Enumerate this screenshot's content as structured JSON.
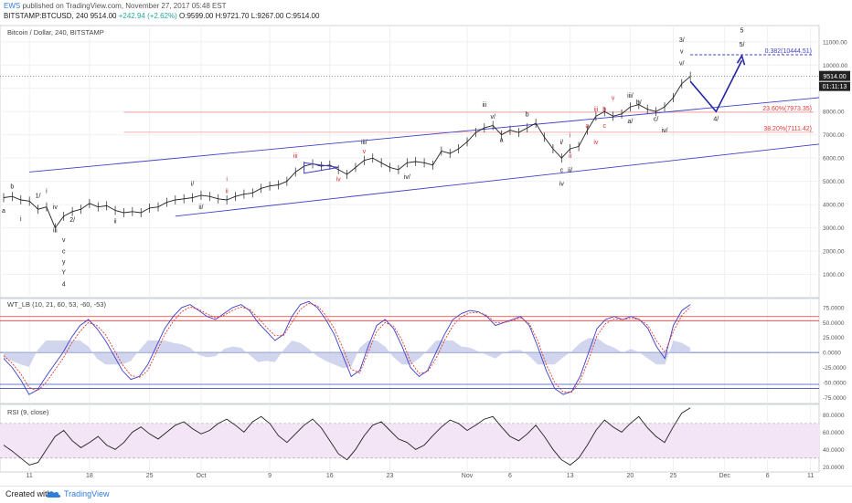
{
  "header": {
    "user": "EWS",
    "published": "published on TradingView.com, November 27, 2017 05:48 EST",
    "symbol": "BITSTAMP:BTCUSD, 240",
    "last": "9514.00",
    "change": "+242.94 (+2.62%)",
    "ohlc": "O:9599.00 H:9721.70 L:9267.00 C:9514.00"
  },
  "footer": {
    "created": "Created with",
    "brand": "TradingView"
  },
  "colors": {
    "grid": "#eef0f3",
    "wave_black": "#222222",
    "wave_red": "#d32f2f",
    "channel": "#3f3fc8",
    "projection": "#2424a8",
    "fib": "#ef9a9a",
    "rsi_band": "#f3e5f5",
    "wt_fill": "#c5cae9"
  },
  "chart_data": [
    {
      "type": "line",
      "title": "Bitcoin / Dollar, 240, BITSTAMP",
      "y_ticks": [
        "11000.00",
        "10000.00",
        "9000.00",
        "8000.00",
        "7000.00",
        "6000.00",
        "5000.00",
        "4000.00",
        "3000.00",
        "2000.00",
        "1000.00"
      ],
      "ylim": [
        0,
        11700
      ],
      "x_tick_labels": [
        "11",
        "18",
        "25",
        "Oct",
        "9",
        "16",
        "23",
        "Nov",
        "6",
        "13",
        "20",
        "25",
        "Dec",
        "6",
        "11"
      ],
      "price_label": "9514.00",
      "countdown": "01:11:13",
      "fib_levels": [
        {
          "label": "0.382(10444.51)",
          "value": 10444.51
        },
        {
          "label": "23.60%(7973.35)",
          "value": 7973.35
        },
        {
          "label": "38.20%(7111.42)",
          "value": 7111.42
        }
      ],
      "series": [
        {
          "name": "BTCUSD",
          "x": [
            "Sep 8",
            "Sep 9",
            "Sep 10",
            "Sep 11",
            "Sep 12",
            "Sep 13",
            "Sep 14",
            "Sep 15",
            "Sep 16",
            "Sep 17",
            "Sep 18",
            "Sep 19",
            "Sep 20",
            "Sep 21",
            "Sep 22",
            "Sep 23",
            "Sep 24",
            "Sep 25",
            "Sep 26",
            "Sep 27",
            "Sep 28",
            "Sep 29",
            "Sep 30",
            "Oct 1",
            "Oct 2",
            "Oct 3",
            "Oct 4",
            "Oct 5",
            "Oct 6",
            "Oct 7",
            "Oct 8",
            "Oct 9",
            "Oct 10",
            "Oct 11",
            "Oct 12",
            "Oct 13",
            "Oct 14",
            "Oct 15",
            "Oct 16",
            "Oct 17",
            "Oct 18",
            "Oct 19",
            "Oct 20",
            "Oct 21",
            "Oct 22",
            "Oct 23",
            "Oct 24",
            "Oct 25",
            "Oct 26",
            "Oct 27",
            "Oct 28",
            "Oct 29",
            "Oct 30",
            "Oct 31",
            "Nov 1",
            "Nov 2",
            "Nov 3",
            "Nov 4",
            "Nov 5",
            "Nov 6",
            "Nov 7",
            "Nov 8",
            "Nov 9",
            "Nov 10",
            "Nov 11",
            "Nov 12",
            "Nov 13",
            "Nov 14",
            "Nov 15",
            "Nov 16",
            "Nov 17",
            "Nov 18",
            "Nov 19",
            "Nov 20",
            "Nov 21",
            "Nov 22",
            "Nov 23",
            "Nov 24",
            "Nov 25",
            "Nov 26",
            "Nov 27"
          ],
          "values": [
            4300,
            4350,
            4200,
            4150,
            3800,
            3900,
            3000,
            3500,
            3700,
            3800,
            4050,
            3900,
            3950,
            3750,
            3650,
            3700,
            3650,
            3850,
            3900,
            4100,
            4200,
            4250,
            4300,
            4400,
            4350,
            4250,
            4200,
            4350,
            4450,
            4500,
            4700,
            4800,
            4850,
            5000,
            5400,
            5650,
            5750,
            5650,
            5700,
            5500,
            5300,
            5600,
            5900,
            6000,
            5800,
            5600,
            5500,
            5800,
            5850,
            5800,
            5700,
            6300,
            6200,
            6400,
            6700,
            7100,
            7300,
            7400,
            7000,
            7200,
            7100,
            7300,
            7500,
            6900,
            6400,
            6000,
            6400,
            6500,
            7200,
            7800,
            8000,
            7800,
            7900,
            8200,
            8300,
            8100,
            8000,
            8200,
            8600,
            9200,
            9514
          ]
        }
      ],
      "projection_path": [
        {
          "x": "Nov 27",
          "y": 9300
        },
        {
          "x": "Nov 30",
          "y": 8000
        },
        {
          "x": "Dec 3",
          "y": 10200
        }
      ],
      "labels_black": [
        {
          "text": "b",
          "x": "Sep 9",
          "y": 4700
        },
        {
          "text": "a",
          "x": "Sep 8",
          "y": 3650
        },
        {
          "text": "i",
          "x": "Sep 10",
          "y": 3300
        },
        {
          "text": "1/",
          "x": "Sep 12",
          "y": 4300
        },
        {
          "text": "i",
          "x": "Sep 13",
          "y": 4500
        },
        {
          "text": "iii",
          "x": "Sep 14",
          "y": 2800
        },
        {
          "text": "iv",
          "x": "Sep 14",
          "y": 3800
        },
        {
          "text": "2/",
          "x": "Sep 16",
          "y": 3250
        },
        {
          "text": "v",
          "x": "Sep 15",
          "y": 2400
        },
        {
          "text": "c",
          "x": "Sep 15",
          "y": 1900
        },
        {
          "text": "y",
          "x": "Sep 15",
          "y": 1450
        },
        {
          "text": "Y",
          "x": "Sep 15",
          "y": 1000
        },
        {
          "text": "4",
          "x": "Sep 15",
          "y": 500
        },
        {
          "text": "ii",
          "x": "Sep 21",
          "y": 3200
        },
        {
          "text": "i/",
          "x": "Sep 30",
          "y": 4800
        },
        {
          "text": "ii/",
          "x": "Oct 1",
          "y": 3800
        },
        {
          "text": "iii/",
          "x": "Oct 20",
          "y": 6600
        },
        {
          "text": "iv/",
          "x": "Oct 25",
          "y": 5100
        },
        {
          "text": "iii",
          "x": "Nov 3",
          "y": 8200
        },
        {
          "text": "v/",
          "x": "Nov 4",
          "y": 7700
        },
        {
          "text": "a",
          "x": "Nov 5",
          "y": 6700
        },
        {
          "text": "b",
          "x": "Nov 8",
          "y": 7800
        },
        {
          "text": "i/",
          "x": "Nov 12",
          "y": 6600
        },
        {
          "text": "c",
          "x": "Nov 12",
          "y": 5400
        },
        {
          "text": "ii/",
          "x": "Nov 13",
          "y": 5400
        },
        {
          "text": "iv",
          "x": "Nov 12",
          "y": 4800
        },
        {
          "text": "iii/",
          "x": "Nov 20",
          "y": 8600
        },
        {
          "text": "b/",
          "x": "Nov 21",
          "y": 8300
        },
        {
          "text": "a/",
          "x": "Nov 20",
          "y": 7500
        },
        {
          "text": "c/",
          "x": "Nov 23",
          "y": 7600
        },
        {
          "text": "iv/",
          "x": "Nov 24",
          "y": 7100
        },
        {
          "text": "v/",
          "x": "Nov 26",
          "y": 10000
        },
        {
          "text": "v",
          "x": "Nov 26",
          "y": 10500
        },
        {
          "text": "3/",
          "x": "Nov 26",
          "y": 11000
        },
        {
          "text": "4/",
          "x": "Nov 30",
          "y": 7600
        },
        {
          "text": "5",
          "x": "Dec 3",
          "y": 11400
        },
        {
          "text": "5/",
          "x": "Dec 3",
          "y": 10800
        }
      ],
      "labels_red": [
        {
          "text": "iii",
          "x": "Oct 12",
          "y": 6000
        },
        {
          "text": "iv",
          "x": "Oct 17",
          "y": 5000
        },
        {
          "text": "v",
          "x": "Oct 20",
          "y": 6200
        },
        {
          "text": "i",
          "x": "Oct 4",
          "y": 5000
        },
        {
          "text": "ii",
          "x": "Oct 4",
          "y": 4500
        },
        {
          "text": "i",
          "x": "Nov 13",
          "y": 6900
        },
        {
          "text": "ii",
          "x": "Nov 13",
          "y": 6000
        },
        {
          "text": "iii",
          "x": "Nov 16",
          "y": 8000
        },
        {
          "text": "a",
          "x": "Nov 15",
          "y": 7300
        },
        {
          "text": "c",
          "x": "Nov 17",
          "y": 7300
        },
        {
          "text": "b",
          "x": "Nov 17",
          "y": 8000
        },
        {
          "text": "iv",
          "x": "Nov 16",
          "y": 6600
        },
        {
          "text": "v",
          "x": "Nov 18",
          "y": 8500
        }
      ]
    },
    {
      "type": "line",
      "title": "WT_LB (10, 21, 60, 53, -60, -53)",
      "y_ticks": [
        "75.0000",
        "50.0000",
        "25.0000",
        "0.0000",
        "-25.0000",
        "-50.0000",
        "-75.0000"
      ],
      "ylim": [
        -85,
        90
      ],
      "reference_lines": [
        60,
        53,
        -53,
        -60
      ],
      "series": [
        {
          "name": "WT1",
          "values": [
            -10,
            -25,
            -45,
            -70,
            -62,
            -40,
            -20,
            0,
            25,
            45,
            55,
            40,
            20,
            -5,
            -30,
            -45,
            -40,
            -20,
            10,
            40,
            60,
            75,
            80,
            70,
            60,
            55,
            65,
            75,
            80,
            70,
            50,
            35,
            20,
            30,
            60,
            80,
            85,
            75,
            55,
            30,
            -5,
            -40,
            -30,
            10,
            45,
            55,
            40,
            10,
            -25,
            -40,
            -30,
            0,
            30,
            55,
            65,
            70,
            68,
            60,
            45,
            50,
            55,
            60,
            45,
            10,
            -30,
            -60,
            -70,
            -65,
            -40,
            0,
            40,
            55,
            60,
            55,
            60,
            55,
            40,
            10,
            -10,
            45,
            70,
            80
          ]
        },
        {
          "name": "WT2",
          "values": [
            -5,
            -18,
            -35,
            -58,
            -64,
            -50,
            -30,
            -10,
            15,
            35,
            50,
            45,
            30,
            5,
            -20,
            -38,
            -42,
            -30,
            0,
            30,
            52,
            68,
            76,
            72,
            64,
            58,
            62,
            70,
            76,
            72,
            58,
            42,
            28,
            28,
            50,
            72,
            82,
            78,
            62,
            40,
            8,
            -28,
            -34,
            0,
            35,
            50,
            44,
            20,
            -15,
            -35,
            -32,
            -10,
            20,
            45,
            60,
            66,
            67,
            62,
            50,
            50,
            53,
            58,
            48,
            20,
            -20,
            -50,
            -66,
            -66,
            -48,
            -12,
            28,
            48,
            56,
            55,
            57,
            55,
            45,
            20,
            0,
            35,
            62,
            76
          ]
        }
      ]
    },
    {
      "type": "line",
      "title": "RSI (9, close)",
      "y_ticks": [
        "80.0000",
        "60.0000",
        "40.0000",
        "20.0000"
      ],
      "ylim": [
        14,
        92
      ],
      "band": [
        30,
        70
      ],
      "series": [
        {
          "name": "RSI",
          "values": [
            45,
            38,
            30,
            22,
            25,
            40,
            55,
            62,
            50,
            42,
            48,
            55,
            45,
            40,
            48,
            60,
            66,
            58,
            52,
            60,
            68,
            72,
            64,
            58,
            62,
            70,
            75,
            68,
            60,
            72,
            78,
            70,
            56,
            48,
            58,
            68,
            75,
            65,
            50,
            35,
            28,
            40,
            56,
            68,
            72,
            62,
            52,
            48,
            40,
            45,
            56,
            66,
            74,
            70,
            62,
            68,
            75,
            78,
            66,
            55,
            50,
            58,
            68,
            55,
            40,
            28,
            22,
            30,
            45,
            62,
            74,
            66,
            60,
            70,
            78,
            65,
            55,
            48,
            66,
            82,
            88
          ]
        }
      ]
    }
  ]
}
